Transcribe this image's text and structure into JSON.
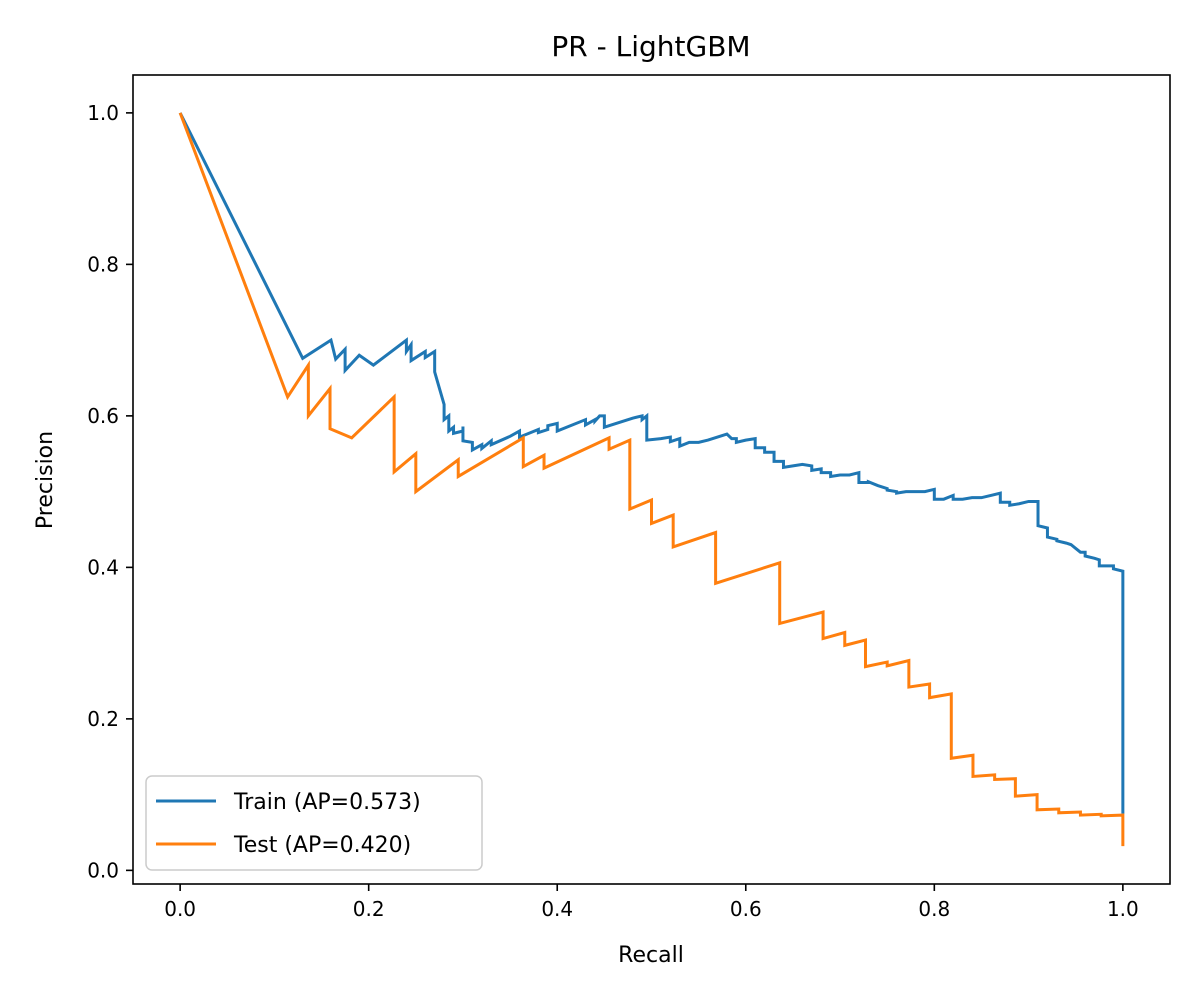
{
  "chart_data": {
    "type": "line",
    "title": "PR - LightGBM",
    "xlabel": "Recall",
    "ylabel": "Precision",
    "xlim": [
      -0.05,
      1.05
    ],
    "ylim": [
      -0.018,
      1.05
    ],
    "xticks": [
      0.0,
      0.2,
      0.4,
      0.6,
      0.8,
      1.0
    ],
    "yticks": [
      0.0,
      0.2,
      0.4,
      0.6,
      0.8,
      1.0
    ],
    "xtick_labels": [
      "0.0",
      "0.2",
      "0.4",
      "0.6",
      "0.8",
      "1.0"
    ],
    "ytick_labels": [
      "0.0",
      "0.2",
      "0.4",
      "0.6",
      "0.8",
      "1.0"
    ],
    "grid": false,
    "legend_position": "lower-left",
    "series": [
      {
        "name": "Train (AP=0.573)",
        "color": "#1f77b4",
        "points": [
          [
            0.0,
            1.0
          ],
          [
            0.13,
            0.676
          ],
          [
            0.16,
            0.7
          ],
          [
            0.165,
            0.675
          ],
          [
            0.175,
            0.688
          ],
          [
            0.175,
            0.66
          ],
          [
            0.19,
            0.68
          ],
          [
            0.205,
            0.667
          ],
          [
            0.24,
            0.7
          ],
          [
            0.24,
            0.685
          ],
          [
            0.245,
            0.694
          ],
          [
            0.245,
            0.673
          ],
          [
            0.26,
            0.685
          ],
          [
            0.26,
            0.677
          ],
          [
            0.27,
            0.685
          ],
          [
            0.27,
            0.658
          ],
          [
            0.28,
            0.615
          ],
          [
            0.28,
            0.595
          ],
          [
            0.285,
            0.6
          ],
          [
            0.285,
            0.58
          ],
          [
            0.29,
            0.585
          ],
          [
            0.29,
            0.577
          ],
          [
            0.3,
            0.58
          ],
          [
            0.3,
            0.586
          ],
          [
            0.3,
            0.567
          ],
          [
            0.31,
            0.565
          ],
          [
            0.31,
            0.555
          ],
          [
            0.32,
            0.562
          ],
          [
            0.32,
            0.557
          ],
          [
            0.33,
            0.567
          ],
          [
            0.33,
            0.562
          ],
          [
            0.35,
            0.573
          ],
          [
            0.36,
            0.58
          ],
          [
            0.36,
            0.572
          ],
          [
            0.38,
            0.582
          ],
          [
            0.38,
            0.578
          ],
          [
            0.39,
            0.582
          ],
          [
            0.39,
            0.587
          ],
          [
            0.4,
            0.59
          ],
          [
            0.4,
            0.58
          ],
          [
            0.43,
            0.595
          ],
          [
            0.43,
            0.588
          ],
          [
            0.44,
            0.595
          ],
          [
            0.44,
            0.593
          ],
          [
            0.445,
            0.6
          ],
          [
            0.45,
            0.6
          ],
          [
            0.45,
            0.585
          ],
          [
            0.47,
            0.593
          ],
          [
            0.48,
            0.597
          ],
          [
            0.49,
            0.6
          ],
          [
            0.49,
            0.595
          ],
          [
            0.495,
            0.6
          ],
          [
            0.495,
            0.568
          ],
          [
            0.51,
            0.57
          ],
          [
            0.52,
            0.572
          ],
          [
            0.52,
            0.566
          ],
          [
            0.53,
            0.57
          ],
          [
            0.53,
            0.56
          ],
          [
            0.54,
            0.565
          ],
          [
            0.55,
            0.565
          ],
          [
            0.56,
            0.568
          ],
          [
            0.58,
            0.576
          ],
          [
            0.585,
            0.57
          ],
          [
            0.59,
            0.57
          ],
          [
            0.59,
            0.565
          ],
          [
            0.6,
            0.568
          ],
          [
            0.61,
            0.57
          ],
          [
            0.61,
            0.558
          ],
          [
            0.62,
            0.558
          ],
          [
            0.62,
            0.552
          ],
          [
            0.63,
            0.552
          ],
          [
            0.63,
            0.54
          ],
          [
            0.64,
            0.54
          ],
          [
            0.64,
            0.532
          ],
          [
            0.65,
            0.534
          ],
          [
            0.66,
            0.536
          ],
          [
            0.67,
            0.534
          ],
          [
            0.67,
            0.528
          ],
          [
            0.68,
            0.53
          ],
          [
            0.68,
            0.525
          ],
          [
            0.69,
            0.525
          ],
          [
            0.69,
            0.52
          ],
          [
            0.7,
            0.522
          ],
          [
            0.71,
            0.522
          ],
          [
            0.72,
            0.525
          ],
          [
            0.72,
            0.512
          ],
          [
            0.73,
            0.512
          ],
          [
            0.73,
            0.513
          ],
          [
            0.74,
            0.508
          ],
          [
            0.75,
            0.504
          ],
          [
            0.75,
            0.502
          ],
          [
            0.76,
            0.5
          ],
          [
            0.76,
            0.498
          ],
          [
            0.77,
            0.5
          ],
          [
            0.78,
            0.5
          ],
          [
            0.79,
            0.5
          ],
          [
            0.8,
            0.503
          ],
          [
            0.8,
            0.49
          ],
          [
            0.81,
            0.49
          ],
          [
            0.82,
            0.495
          ],
          [
            0.82,
            0.49
          ],
          [
            0.83,
            0.49
          ],
          [
            0.84,
            0.492
          ],
          [
            0.85,
            0.492
          ],
          [
            0.86,
            0.495
          ],
          [
            0.87,
            0.498
          ],
          [
            0.87,
            0.486
          ],
          [
            0.88,
            0.486
          ],
          [
            0.88,
            0.482
          ],
          [
            0.89,
            0.484
          ],
          [
            0.9,
            0.487
          ],
          [
            0.91,
            0.487
          ],
          [
            0.91,
            0.455
          ],
          [
            0.92,
            0.452
          ],
          [
            0.92,
            0.44
          ],
          [
            0.93,
            0.437
          ],
          [
            0.93,
            0.435
          ],
          [
            0.94,
            0.432
          ],
          [
            0.945,
            0.43
          ],
          [
            0.95,
            0.425
          ],
          [
            0.955,
            0.42
          ],
          [
            0.96,
            0.42
          ],
          [
            0.96,
            0.415
          ],
          [
            0.97,
            0.412
          ],
          [
            0.975,
            0.41
          ],
          [
            0.975,
            0.402
          ],
          [
            0.99,
            0.402
          ],
          [
            0.99,
            0.398
          ],
          [
            1.0,
            0.395
          ],
          [
            1.0,
            0.075
          ]
        ]
      },
      {
        "name": "Test (AP=0.420)",
        "color": "#ff7f0e",
        "points": [
          [
            0.0,
            1.0
          ],
          [
            0.114,
            0.625
          ],
          [
            0.136,
            0.667
          ],
          [
            0.136,
            0.6
          ],
          [
            0.159,
            0.636
          ],
          [
            0.159,
            0.583
          ],
          [
            0.182,
            0.571
          ],
          [
            0.227,
            0.625
          ],
          [
            0.227,
            0.526
          ],
          [
            0.25,
            0.55
          ],
          [
            0.25,
            0.5
          ],
          [
            0.295,
            0.542
          ],
          [
            0.295,
            0.52
          ],
          [
            0.364,
            0.571
          ],
          [
            0.364,
            0.533
          ],
          [
            0.386,
            0.548
          ],
          [
            0.386,
            0.531
          ],
          [
            0.455,
            0.571
          ],
          [
            0.455,
            0.556
          ],
          [
            0.477,
            0.568
          ],
          [
            0.477,
            0.477
          ],
          [
            0.5,
            0.489
          ],
          [
            0.5,
            0.458
          ],
          [
            0.523,
            0.469
          ],
          [
            0.523,
            0.427
          ],
          [
            0.568,
            0.446
          ],
          [
            0.568,
            0.379
          ],
          [
            0.636,
            0.406
          ],
          [
            0.636,
            0.326
          ],
          [
            0.682,
            0.341
          ],
          [
            0.682,
            0.306
          ],
          [
            0.705,
            0.314
          ],
          [
            0.705,
            0.297
          ],
          [
            0.727,
            0.304
          ],
          [
            0.727,
            0.269
          ],
          [
            0.75,
            0.275
          ],
          [
            0.75,
            0.27
          ],
          [
            0.773,
            0.277
          ],
          [
            0.773,
            0.242
          ],
          [
            0.795,
            0.246
          ],
          [
            0.795,
            0.228
          ],
          [
            0.818,
            0.233
          ],
          [
            0.818,
            0.148
          ],
          [
            0.841,
            0.152
          ],
          [
            0.841,
            0.124
          ],
          [
            0.864,
            0.126
          ],
          [
            0.864,
            0.12
          ],
          [
            0.886,
            0.121
          ],
          [
            0.886,
            0.098
          ],
          [
            0.909,
            0.1
          ],
          [
            0.909,
            0.08
          ],
          [
            0.932,
            0.081
          ],
          [
            0.932,
            0.076
          ],
          [
            0.955,
            0.077
          ],
          [
            0.955,
            0.073
          ],
          [
            0.977,
            0.074
          ],
          [
            0.977,
            0.072
          ],
          [
            1.0,
            0.073
          ],
          [
            1.0,
            0.032
          ]
        ]
      }
    ]
  }
}
